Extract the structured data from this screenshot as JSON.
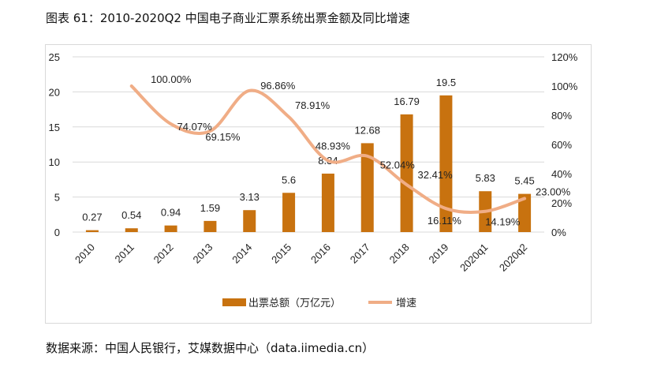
{
  "title": "图表 61：2010-2020Q2 中国电子商业汇票系统出票金额及同比增速",
  "source": "数据来源：中国人民银行，艾媒数据中心（data.iimedia.cn）",
  "chart_data": {
    "type": "bar+line",
    "categories": [
      "2010",
      "2011",
      "2012",
      "2013",
      "2014",
      "2015",
      "2016",
      "2017",
      "2018",
      "2019",
      "2020q1",
      "2020q2"
    ],
    "series": [
      {
        "name": "出票总额（万亿元）",
        "type": "bar",
        "axis": "left",
        "color": "#C8720F",
        "values": [
          0.27,
          0.54,
          0.94,
          1.59,
          3.13,
          5.6,
          8.34,
          12.68,
          16.79,
          19.5,
          5.83,
          5.45
        ],
        "labels": [
          "0.27",
          "0.54",
          "0.94",
          "1.59",
          "3.13",
          "5.6",
          "8.34",
          "12.68",
          "16.79",
          "19.5",
          "5.83",
          "5.45"
        ]
      },
      {
        "name": "增速",
        "type": "line",
        "axis": "right",
        "color": "#F0AD86",
        "values": [
          null,
          100.0,
          74.07,
          69.15,
          96.86,
          78.91,
          48.93,
          52.04,
          32.41,
          16.11,
          14.19,
          23.0
        ],
        "labels": [
          "",
          "100.00%",
          "74.07%",
          "69.15%",
          "96.86%",
          "78.91%",
          "48.93%",
          "52.04%",
          "32.41%",
          "16.11%",
          "14.19%",
          "23.00%"
        ]
      }
    ],
    "y_left": {
      "range": [
        0,
        25
      ],
      "ticks": [
        "0",
        "5",
        "10",
        "15",
        "20",
        "25"
      ]
    },
    "y_right": {
      "range": [
        0,
        120
      ],
      "ticks": [
        "0%",
        "20%",
        "40%",
        "60%",
        "80%",
        "100%",
        "120%"
      ]
    },
    "grid": true,
    "legend": "bottom"
  }
}
